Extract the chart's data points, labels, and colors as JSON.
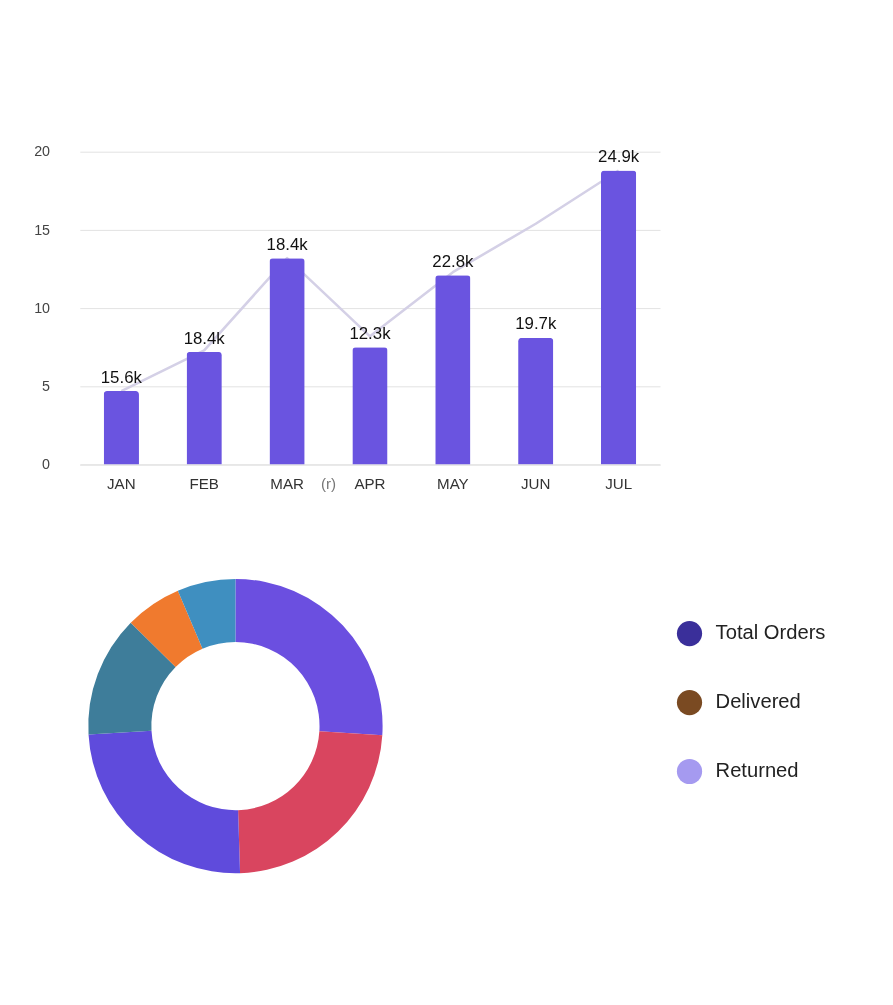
{
  "chart_data": [
    {
      "type": "bar",
      "categories": [
        "JAN",
        "FEB",
        "MAR",
        "APR",
        "MAY",
        "JUN",
        "JUL"
      ],
      "ylim": [
        0,
        20
      ],
      "yticks": [
        0,
        5,
        10,
        15,
        20
      ],
      "grid": "y",
      "series": [
        {
          "type": "bar",
          "color": "#6a54e0",
          "values": [
            4.7,
            7.2,
            13.2,
            7.5,
            12.1,
            8.1,
            18.8
          ]
        },
        {
          "type": "line",
          "color": "#d4d0e6",
          "values": [
            4.7,
            7.3,
            13.2,
            8.2,
            12.3,
            15.4,
            18.8
          ]
        }
      ],
      "annotations": [
        "(r)",
        {
          "text": "15.6k",
          "x": "JAN",
          "y": 4.7
        },
        {
          "text": "18.4k",
          "x": "FEB",
          "y": 7.2
        },
        {
          "text": "18.4k",
          "x": "MAR",
          "y": 13.2
        },
        {
          "text": "12.3k",
          "x": "APR",
          "y": 7.5
        },
        {
          "text": "22.8k",
          "x": "MAY",
          "y": 12.1
        },
        {
          "text": "19.7k",
          "x": "JUN",
          "y": 8.1
        },
        {
          "text": "24.9k",
          "x": "JUL",
          "y": 18.8
        }
      ]
    },
    {
      "type": "donut",
      "categories": [
        null,
        null,
        null,
        null,
        null,
        null
      ],
      "values": [
        26,
        23.5,
        24.6,
        13.3,
        6.2,
        6.4
      ],
      "colors": [
        "#6b4fe0",
        "#d9455f",
        "#5f4bdc",
        "#3e7d9a",
        "#f07a2e",
        "#3f8fc0"
      ],
      "legend": false
    },
    {
      "type": "other",
      "categories": [
        "Total Orders",
        "Delivered",
        "Returned"
      ],
      "colors": [
        "#3a2f9a",
        "#7a4a22",
        "#a59af0"
      ]
    }
  ]
}
